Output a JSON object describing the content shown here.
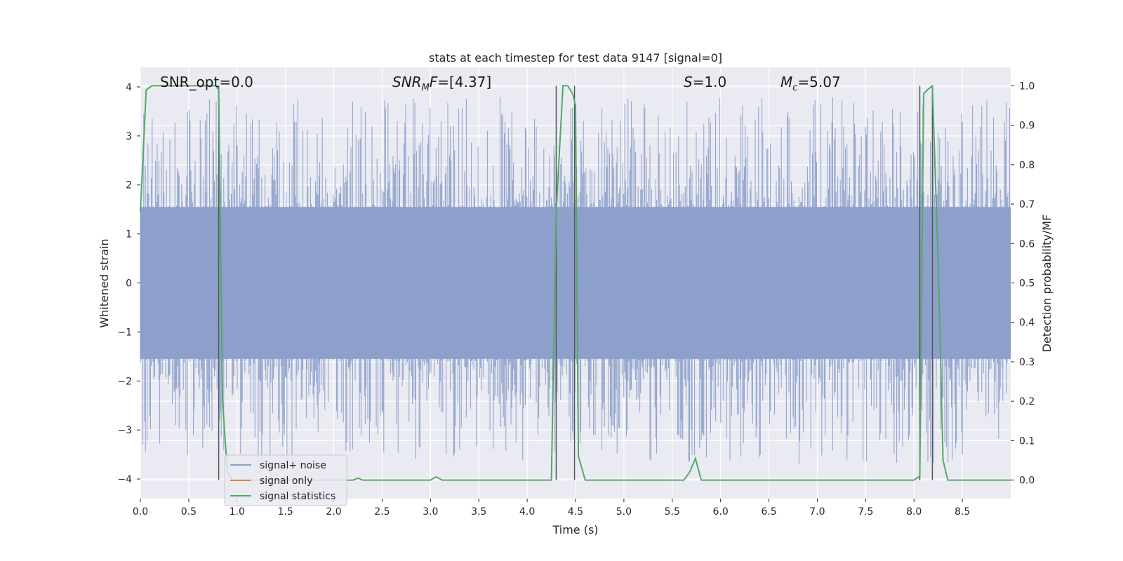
{
  "chart_data": {
    "type": "line",
    "title": "stats at each timestep for test data 9147 [signal=0]",
    "xlabel": "Time (s)",
    "ylabel": "Whitened strain",
    "y2label": "Detection probability/MF",
    "xlim": [
      0,
      9
    ],
    "ylim": [
      -4.4,
      4.4
    ],
    "y2lim": [
      -0.047,
      1.047
    ],
    "x_ticks": [
      "0.0",
      "0.5",
      "1.0",
      "1.5",
      "2.0",
      "2.5",
      "3.0",
      "3.5",
      "4.0",
      "4.5",
      "5.0",
      "5.5",
      "6.0",
      "6.5",
      "7.0",
      "7.5",
      "8.0",
      "8.5"
    ],
    "y_ticks": [
      "4",
      "3",
      "2",
      "1",
      "0",
      "−1",
      "−2",
      "−3",
      "−4"
    ],
    "y2_ticks": [
      "1.0",
      "0.9",
      "0.8",
      "0.7",
      "0.6",
      "0.5",
      "0.4",
      "0.3",
      "0.2",
      "0.1",
      "0.0"
    ],
    "grid": true,
    "background": "#eaeaf2",
    "annotations": [
      {
        "text": "SNR_opt=0.0",
        "x": 0.2
      },
      {
        "text": "SNR_MF=[4.37]",
        "x": 2.6
      },
      {
        "text": "S=1.0",
        "x": 5.6
      },
      {
        "text": "M_c=5.07",
        "x": 6.6
      }
    ],
    "vlines": [
      0.81,
      4.3,
      4.49,
      8.06,
      8.19
    ],
    "legend": {
      "position": "lower-left",
      "entries": [
        "signal+ noise",
        "signal only",
        "signal statistics"
      ]
    },
    "series": [
      {
        "name": "signal+ noise",
        "axis": "left",
        "color": "#8da0cb",
        "description_range": [
          -3.9,
          3.9
        ]
      },
      {
        "name": "signal only",
        "axis": "left",
        "color": "#dd8452"
      },
      {
        "name": "signal statistics",
        "axis": "right",
        "color": "#55a868",
        "x": [
          0.0,
          0.06,
          0.12,
          0.2,
          0.3,
          0.5,
          0.7,
          0.78,
          0.81,
          0.85,
          0.9,
          0.95,
          1.0,
          1.2,
          1.5,
          1.8,
          2.0,
          2.2,
          2.25,
          2.3,
          2.5,
          2.8,
          3.0,
          3.06,
          3.12,
          3.2,
          3.5,
          4.0,
          4.25,
          4.3,
          4.37,
          4.42,
          4.47,
          4.5,
          4.53,
          4.6,
          5.0,
          5.5,
          5.62,
          5.68,
          5.74,
          5.8,
          6.0,
          7.0,
          8.0,
          8.06,
          8.1,
          8.14,
          8.19,
          8.25,
          8.3,
          8.35,
          8.5,
          9.0
        ],
        "values": [
          0.68,
          0.99,
          1.0,
          1.0,
          1.0,
          1.0,
          1.0,
          1.0,
          0.99,
          0.2,
          0.02,
          0.0,
          0.0,
          0.0,
          0.0,
          0.0,
          0.0,
          0.0,
          0.005,
          0.0,
          0.0,
          0.0,
          0.0,
          0.008,
          0.0,
          0.0,
          0.0,
          0.0,
          0.0,
          0.68,
          1.0,
          1.0,
          0.98,
          0.95,
          0.06,
          0.0,
          0.0,
          0.0,
          0.0,
          0.02,
          0.055,
          0.0,
          0.0,
          0.0,
          0.0,
          0.01,
          0.98,
          0.99,
          1.0,
          0.55,
          0.05,
          0.0,
          0.0,
          0.0
        ]
      }
    ]
  }
}
